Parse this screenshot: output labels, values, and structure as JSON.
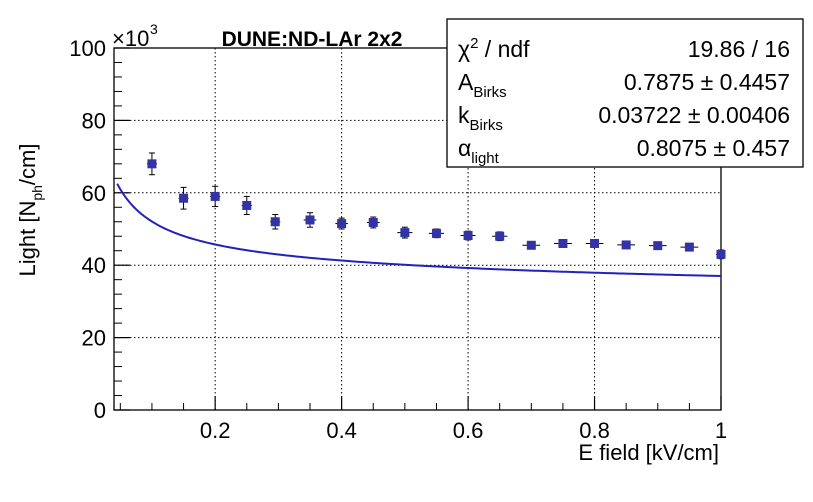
{
  "chart_data": {
    "type": "scatter",
    "title": "DUNE:ND-LAr 2x2",
    "xlabel": "E field [kV/cm]",
    "ylabel": "Light [N",
    "ylabel_sub": "ph",
    "ylabel_tail": "/cm]",
    "y_multiplier": "×10",
    "y_multiplier_exp": "3",
    "xlim": [
      0.04,
      1.0
    ],
    "ylim": [
      0,
      100
    ],
    "x_ticks": [
      0.2,
      0.4,
      0.6,
      0.8,
      1.0
    ],
    "x_tick_labels": [
      "0.2",
      "0.4",
      "0.6",
      "0.8",
      "1"
    ],
    "y_ticks": [
      0,
      20,
      40,
      60,
      80,
      100
    ],
    "y_tick_labels": [
      "0",
      "20",
      "40",
      "60",
      "80",
      "100"
    ],
    "grid": true,
    "series": [
      {
        "color": "#3333a8",
        "x": [
          0.1,
          0.15,
          0.2,
          0.25,
          0.295,
          0.35,
          0.4,
          0.45,
          0.5,
          0.55,
          0.6,
          0.65,
          0.7,
          0.75,
          0.8,
          0.85,
          0.9,
          0.95,
          1.0
        ],
        "y": [
          68.0,
          58.5,
          59.0,
          56.5,
          52.0,
          52.5,
          51.5,
          51.8,
          49.0,
          48.8,
          48.2,
          48.0,
          45.5,
          46.0,
          46.0,
          45.6,
          45.4,
          45.0,
          43.0
        ],
        "xerr": [
          0.008,
          0.008,
          0.008,
          0.008,
          0.008,
          0.01,
          0.01,
          0.01,
          0.012,
          0.012,
          0.012,
          0.012,
          0.014,
          0.014,
          0.014,
          0.014,
          0.014,
          0.014,
          0.008
        ],
        "yerr": [
          3.0,
          3.0,
          2.8,
          2.5,
          2.0,
          2.0,
          1.5,
          1.5,
          1.5,
          1.2,
          1.2,
          1.2,
          1.0,
          1.0,
          1.0,
          1.0,
          1.0,
          1.0,
          1.2
        ]
      }
    ],
    "fit": {
      "color": "#2222bb",
      "x_start": 0.045,
      "x_end": 1.0,
      "description": "Birks-law fit"
    },
    "stats_box": {
      "rows": [
        {
          "label": "χ",
          "sup": "2",
          "label_tail": " / ndf",
          "value": "19.86 / 16"
        },
        {
          "label": "A",
          "sub": "Birks",
          "value": "0.7875 ± 0.4457"
        },
        {
          "label": "k",
          "sub": "Birks",
          "value": "0.03722 ± 0.00406"
        },
        {
          "label": "α",
          "sub": "light",
          "value": "0.8075 ± 0.457"
        }
      ]
    }
  }
}
